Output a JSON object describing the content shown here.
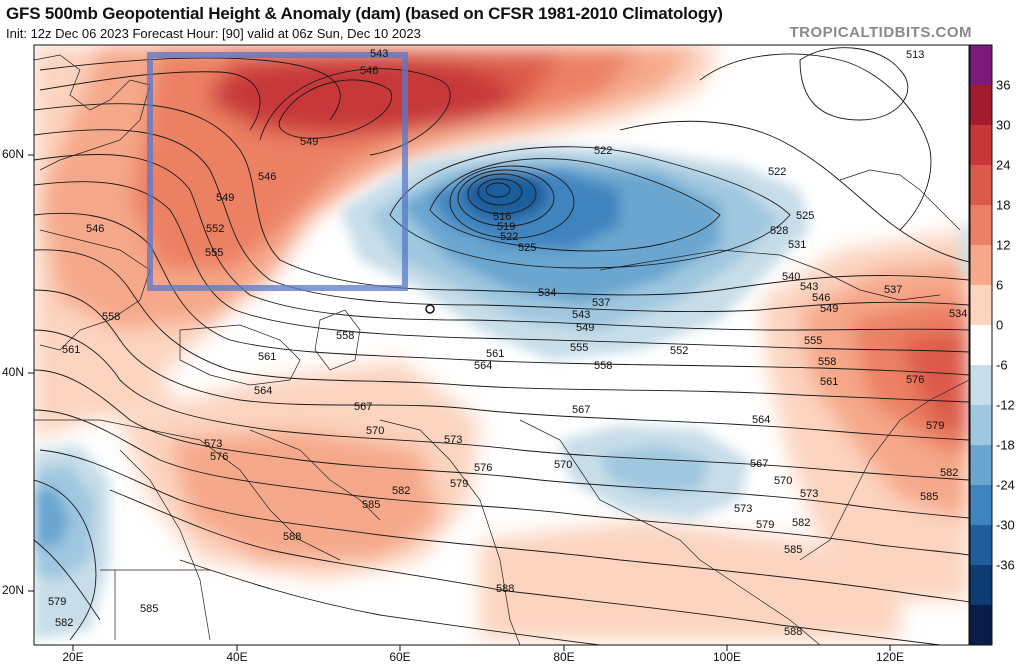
{
  "header": {
    "title": "GFS 500mb Geopotential Height & Anomaly (dam) (based on CFSR 1981-2010 Climatology)",
    "subtitle": "Init: 12z Dec 06 2023   Forecast Hour: [90]   valid at 06z Sun, Dec 10 2023",
    "watermark": "TROPICALTIDBITS.COM"
  },
  "axes": {
    "lat_labels": [
      "60N",
      "40N",
      "20N"
    ],
    "lon_labels": [
      "20E",
      "40E",
      "60E",
      "80E",
      "100E",
      "120E"
    ]
  },
  "colorbar": {
    "labels": [
      "36",
      "30",
      "24",
      "18",
      "12",
      "6",
      "0",
      "-6",
      "-12",
      "-18",
      "-24",
      "-30",
      "-36"
    ],
    "colors": [
      "#7b1a7b",
      "#a31c2e",
      "#c7373a",
      "#dc5a4a",
      "#ec8064",
      "#f6a88a",
      "#fcd4bf",
      "#ffffff",
      "#c7dde9",
      "#9fc7e0",
      "#6aa6d0",
      "#3f84bf",
      "#1f5d9d",
      "#0d3b72",
      "#081e49"
    ]
  },
  "contour_labels": [
    {
      "text": "543"
    },
    {
      "text": "546"
    },
    {
      "text": "549"
    },
    {
      "text": "546"
    },
    {
      "text": "549"
    },
    {
      "text": "552"
    },
    {
      "text": "555"
    },
    {
      "text": "546"
    },
    {
      "text": "558"
    },
    {
      "text": "561"
    },
    {
      "text": "561"
    },
    {
      "text": "564"
    },
    {
      "text": "558"
    },
    {
      "text": "567"
    },
    {
      "text": "570"
    },
    {
      "text": "573"
    },
    {
      "text": "573"
    },
    {
      "text": "576"
    },
    {
      "text": "579"
    },
    {
      "text": "582"
    },
    {
      "text": "585"
    },
    {
      "text": "588"
    },
    {
      "text": "576"
    },
    {
      "text": "573"
    },
    {
      "text": "579"
    },
    {
      "text": "582"
    },
    {
      "text": "585"
    },
    {
      "text": "588"
    },
    {
      "text": "585"
    },
    {
      "text": "579"
    },
    {
      "text": "582"
    },
    {
      "text": "513"
    },
    {
      "text": "522"
    },
    {
      "text": "522"
    },
    {
      "text": "525"
    },
    {
      "text": "528"
    },
    {
      "text": "531"
    },
    {
      "text": "516"
    },
    {
      "text": "519"
    },
    {
      "text": "522"
    },
    {
      "text": "525"
    },
    {
      "text": "534"
    },
    {
      "text": "537"
    },
    {
      "text": "543"
    },
    {
      "text": "549"
    },
    {
      "text": "555"
    },
    {
      "text": "552"
    },
    {
      "text": "558"
    },
    {
      "text": "561"
    },
    {
      "text": "564"
    },
    {
      "text": "567"
    },
    {
      "text": "564"
    },
    {
      "text": "570"
    },
    {
      "text": "567"
    },
    {
      "text": "570"
    },
    {
      "text": "573"
    },
    {
      "text": "576"
    },
    {
      "text": "579"
    },
    {
      "text": "582"
    },
    {
      "text": "585"
    },
    {
      "text": "588"
    },
    {
      "text": "540"
    },
    {
      "text": "543"
    },
    {
      "text": "546"
    },
    {
      "text": "549"
    },
    {
      "text": "555"
    },
    {
      "text": "558"
    },
    {
      "text": "561"
    },
    {
      "text": "537"
    },
    {
      "text": "534"
    }
  ],
  "anomaly_key_colors": {
    "pos_strong": "#c7373a",
    "pos_mid": "#ec8064",
    "pos_light": "#f6a88a",
    "pos_faint": "#fcd4bf",
    "neg_faint": "#c7dde9",
    "neg_light": "#9fc7e0",
    "neg_mid": "#6aa6d0",
    "neg_strong": "#3f84bf",
    "neg_deep": "#1f5d9d",
    "region_box": "#5a78c8"
  }
}
